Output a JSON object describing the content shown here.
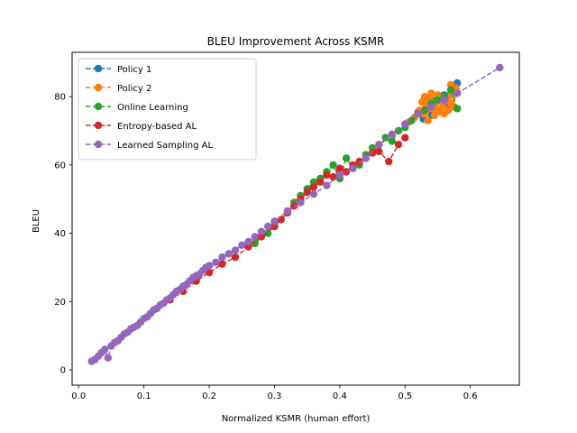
{
  "chart_data": {
    "type": "line",
    "title": "BLEU Improvement Across KSMR",
    "xlabel": "Normalized KSMR (human effort)",
    "ylabel": "BLEU",
    "xlim": [
      -0.01,
      0.675
    ],
    "ylim": [
      -4.5,
      93
    ],
    "xticks": [
      0.0,
      0.1,
      0.2,
      0.3,
      0.4,
      0.5,
      0.6
    ],
    "xtick_labels": [
      "0.0",
      "0.1",
      "0.2",
      "0.3",
      "0.4",
      "0.5",
      "0.6"
    ],
    "yticks": [
      0,
      20,
      40,
      60,
      80
    ],
    "ytick_labels": [
      "0",
      "20",
      "40",
      "60",
      "80"
    ],
    "grid": false,
    "legend_position": "upper-left",
    "marker": "circle",
    "line_style": "dashed",
    "series": [
      {
        "name": "Policy 1",
        "color": "#1f77b4",
        "x": [
          0.52,
          0.535,
          0.548,
          0.56,
          0.572,
          0.58,
          0.565,
          0.552,
          0.54,
          0.528
        ],
        "y": [
          75.5,
          77.5,
          79.0,
          80.5,
          82.0,
          84.0,
          78.0,
          76.0,
          74.5,
          73.5
        ]
      },
      {
        "name": "Policy 2",
        "color": "#ff7f0e",
        "x": [
          0.505,
          0.515,
          0.522,
          0.526,
          0.53,
          0.534,
          0.538,
          0.542,
          0.546,
          0.55,
          0.554,
          0.558,
          0.562,
          0.566,
          0.57,
          0.574,
          0.578,
          0.545,
          0.535,
          0.528,
          0.555,
          0.565,
          0.575,
          0.54,
          0.532,
          0.548,
          0.56,
          0.57
        ],
        "y": [
          72.5,
          74.0,
          76.0,
          78.5,
          80.0,
          77.5,
          79.5,
          76.5,
          78.0,
          80.5,
          75.5,
          77.0,
          79.0,
          76.0,
          83.5,
          81.0,
          82.5,
          74.5,
          73.0,
          75.0,
          78.5,
          80.0,
          77.0,
          81.0,
          79.0,
          76.5,
          75.0,
          78.0
        ]
      },
      {
        "name": "Online Learning",
        "color": "#2ca02c",
        "x": [
          0.27,
          0.29,
          0.3,
          0.31,
          0.32,
          0.33,
          0.34,
          0.35,
          0.36,
          0.37,
          0.38,
          0.39,
          0.4,
          0.41,
          0.42,
          0.43,
          0.44,
          0.45,
          0.46,
          0.47,
          0.48,
          0.49,
          0.5,
          0.51,
          0.52,
          0.53,
          0.54,
          0.55,
          0.56,
          0.57,
          0.58
        ],
        "y": [
          37.0,
          40.0,
          42.0,
          44.0,
          46.0,
          49.0,
          51.0,
          53.0,
          55.0,
          56.0,
          58.0,
          60.0,
          56.0,
          62.0,
          59.0,
          60.0,
          63.0,
          65.0,
          64.0,
          68.0,
          67.0,
          70.0,
          71.0,
          73.0,
          75.0,
          76.0,
          78.0,
          79.0,
          80.0,
          82.0,
          76.5
        ]
      },
      {
        "name": "Entropy-based AL",
        "color": "#d62728",
        "x": [
          0.12,
          0.14,
          0.16,
          0.18,
          0.2,
          0.22,
          0.24,
          0.26,
          0.28,
          0.3,
          0.31,
          0.32,
          0.33,
          0.34,
          0.35,
          0.36,
          0.37,
          0.38,
          0.39,
          0.4,
          0.41,
          0.42,
          0.43,
          0.44,
          0.45,
          0.46,
          0.475,
          0.49,
          0.5
        ],
        "y": [
          18.0,
          20.5,
          23.0,
          26.0,
          28.5,
          31.0,
          33.0,
          36.0,
          39.0,
          42.0,
          44.0,
          46.0,
          48.0,
          50.0,
          52.0,
          53.5,
          55.0,
          57.0,
          56.5,
          59.0,
          58.0,
          60.0,
          61.0,
          62.0,
          63.5,
          64.0,
          61.0,
          66.0,
          68.0
        ]
      },
      {
        "name": "Learned Sampling AL",
        "color": "#9467bd",
        "x": [
          0.02,
          0.025,
          0.03,
          0.035,
          0.04,
          0.045,
          0.05,
          0.055,
          0.06,
          0.065,
          0.07,
          0.075,
          0.08,
          0.085,
          0.09,
          0.095,
          0.1,
          0.105,
          0.11,
          0.115,
          0.12,
          0.125,
          0.13,
          0.135,
          0.14,
          0.145,
          0.15,
          0.155,
          0.16,
          0.165,
          0.17,
          0.175,
          0.18,
          0.185,
          0.19,
          0.195,
          0.2,
          0.21,
          0.22,
          0.23,
          0.24,
          0.25,
          0.26,
          0.27,
          0.28,
          0.29,
          0.3,
          0.32,
          0.34,
          0.36,
          0.38,
          0.4,
          0.42,
          0.44,
          0.46,
          0.48,
          0.5,
          0.52,
          0.54,
          0.56,
          0.58,
          0.645
        ],
        "y": [
          2.5,
          3.0,
          4.0,
          5.0,
          6.0,
          3.5,
          7.0,
          8.0,
          8.5,
          9.5,
          10.5,
          11.0,
          12.0,
          12.5,
          13.0,
          14.0,
          15.0,
          15.5,
          16.5,
          17.5,
          18.0,
          19.0,
          19.5,
          20.5,
          21.0,
          22.0,
          23.0,
          23.5,
          24.5,
          25.0,
          26.0,
          27.0,
          27.5,
          28.0,
          29.0,
          30.0,
          30.5,
          31.5,
          33.0,
          34.0,
          35.0,
          36.5,
          37.5,
          39.0,
          40.5,
          42.0,
          43.5,
          46.5,
          49.0,
          51.5,
          54.0,
          57.0,
          59.0,
          62.0,
          66.0,
          69.0,
          72.0,
          75.0,
          77.0,
          79.0,
          81.0,
          88.5
        ]
      }
    ]
  }
}
